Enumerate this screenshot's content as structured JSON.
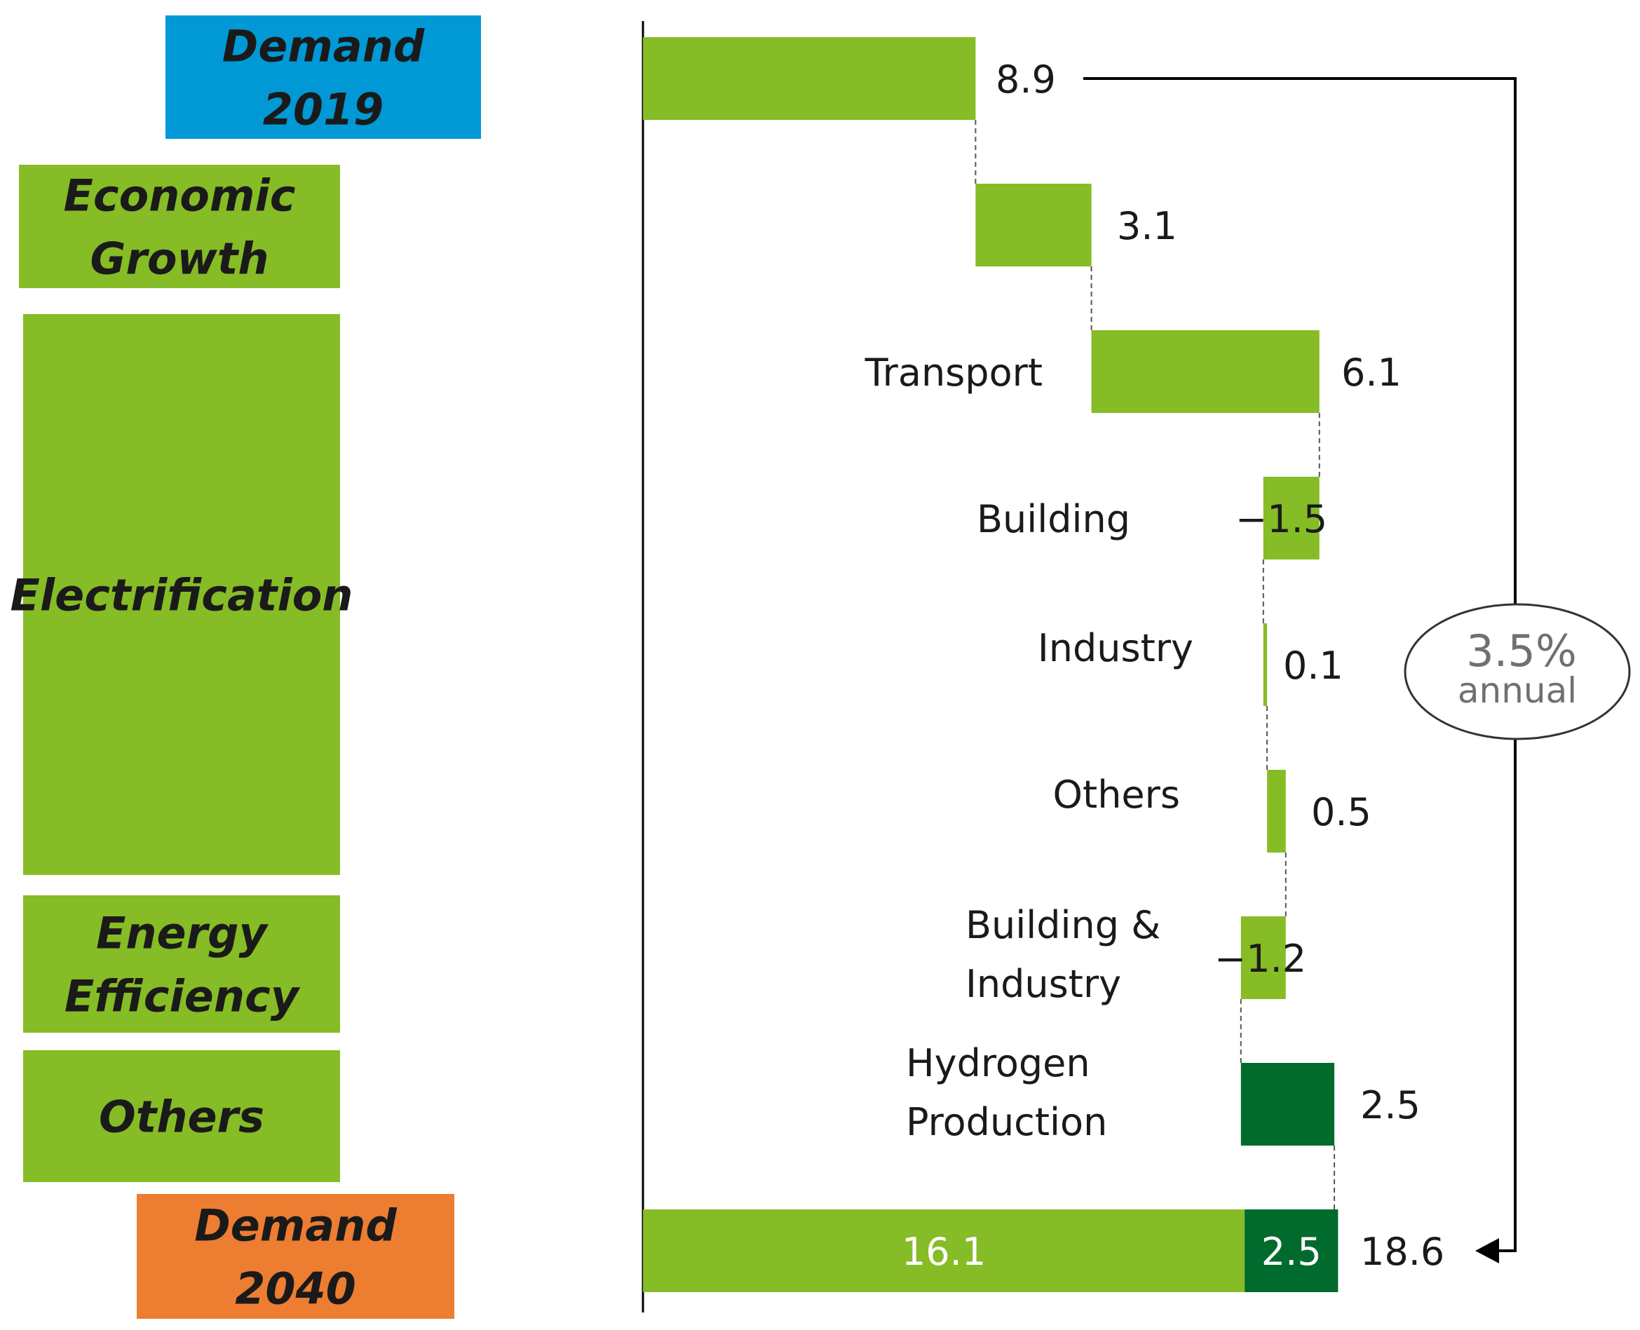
{
  "chart_data": {
    "type": "waterfall",
    "title": "",
    "xlim": [
      0,
      18.6
    ],
    "colors": {
      "start": "#0099d6",
      "end": "#ed7d31",
      "category": "#86bc25",
      "bar_light": "#86bc25",
      "bar_dark": "#006b2d",
      "line": "#000000",
      "annotation_text": "#707070"
    },
    "categories": [
      {
        "id": "demand-2019",
        "lines": [
          "Demand",
          "2019"
        ],
        "color": "start",
        "rows": 1
      },
      {
        "id": "economic-growth",
        "lines": [
          "Economic",
          "Growth"
        ],
        "color": "category",
        "rows": 1
      },
      {
        "id": "electrification",
        "lines": [
          "Electrification"
        ],
        "color": "category",
        "rows": 4
      },
      {
        "id": "energy-efficiency",
        "lines": [
          "Energy",
          "Efficiency"
        ],
        "color": "category",
        "rows": 1
      },
      {
        "id": "others",
        "lines": [
          "Others"
        ],
        "color": "category",
        "rows": 1
      },
      {
        "id": "demand-2040",
        "lines": [
          "Demand",
          "2040"
        ],
        "color": "end",
        "rows": 1
      }
    ],
    "steps": [
      {
        "label_lines": [],
        "value": 8.9,
        "value_label": "8.9",
        "kind": "start",
        "color": "bar_light"
      },
      {
        "label_lines": [],
        "value": 3.1,
        "value_label": "3.1",
        "kind": "delta",
        "color": "bar_light"
      },
      {
        "label_lines": [
          "Transport"
        ],
        "value": 6.1,
        "value_label": "6.1",
        "kind": "delta",
        "color": "bar_light"
      },
      {
        "label_lines": [
          "Building"
        ],
        "value": -1.5,
        "value_label": "−1.5",
        "kind": "delta",
        "color": "bar_light"
      },
      {
        "label_lines": [
          "Industry"
        ],
        "value": 0.1,
        "value_label": "0.1",
        "kind": "delta",
        "color": "bar_light"
      },
      {
        "label_lines": [
          "Others"
        ],
        "value": 0.5,
        "value_label": "0.5",
        "kind": "delta",
        "color": "bar_light"
      },
      {
        "label_lines": [
          "Building &",
          "Industry"
        ],
        "value": -1.2,
        "value_label": "−1.2",
        "kind": "delta",
        "color": "bar_light"
      },
      {
        "label_lines": [
          "Hydrogen",
          "Production"
        ],
        "value": 2.5,
        "value_label": "2.5",
        "kind": "delta",
        "color": "bar_dark"
      }
    ],
    "total": {
      "segments": [
        {
          "value": 16.1,
          "label": "16.1",
          "color": "bar_light"
        },
        {
          "value": 2.5,
          "label": "2.5",
          "color": "bar_dark"
        }
      ],
      "value": 18.6,
      "value_label": "18.6"
    },
    "annotation": {
      "line1": "3.5%",
      "line2": "annual"
    }
  }
}
